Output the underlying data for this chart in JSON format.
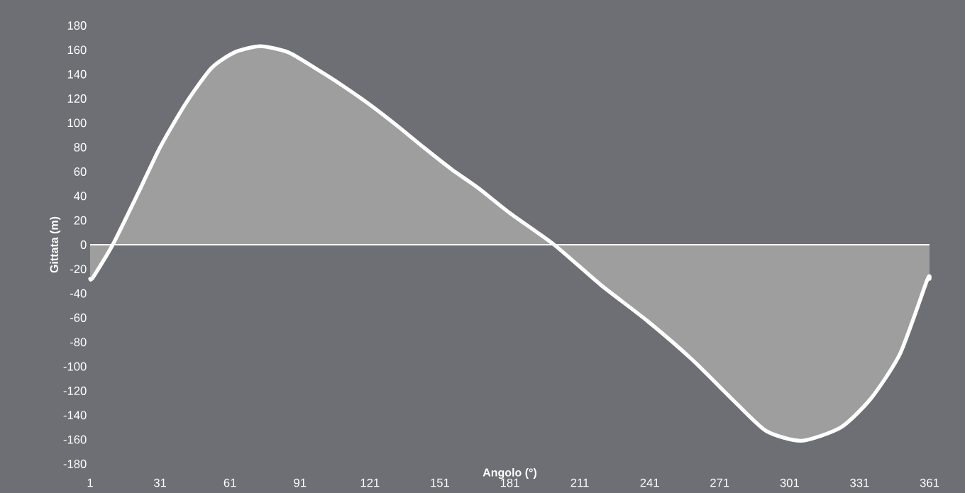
{
  "chart_data": {
    "type": "area",
    "xlabel": "Angolo (°)",
    "ylabel": "Gittata (m)",
    "x": [
      1,
      2.2,
      10.7,
      22,
      31,
      42,
      53,
      63,
      74,
      86,
      97.5,
      109,
      121,
      132.5,
      144,
      156,
      167.5,
      181,
      200,
      220,
      239.6,
      259,
      278,
      291,
      306,
      323,
      336,
      348.5,
      360,
      361
    ],
    "series": [
      {
        "color": "#ffffff",
        "values": [
          -28,
          -27,
          0,
          44,
          80,
          116,
          145,
          158,
          163,
          158,
          145,
          131,
          115,
          98,
          80,
          62,
          46.5,
          26,
          0,
          -33,
          -62,
          -94,
          -130,
          -153,
          -161,
          -150,
          -126,
          -89,
          -29,
          -28
        ]
      }
    ],
    "xlim": [
      1,
      361
    ],
    "xticks": [
      1,
      31,
      61,
      91,
      121,
      151,
      181,
      211,
      241,
      271,
      301,
      331,
      361
    ],
    "ylim": [
      -180,
      180
    ],
    "yticks": [
      -180,
      -160,
      -140,
      -120,
      -100,
      -80,
      -60,
      -40,
      -20,
      0,
      20,
      40,
      60,
      80,
      100,
      120,
      140,
      160,
      180
    ],
    "tick_labels": true
  }
}
